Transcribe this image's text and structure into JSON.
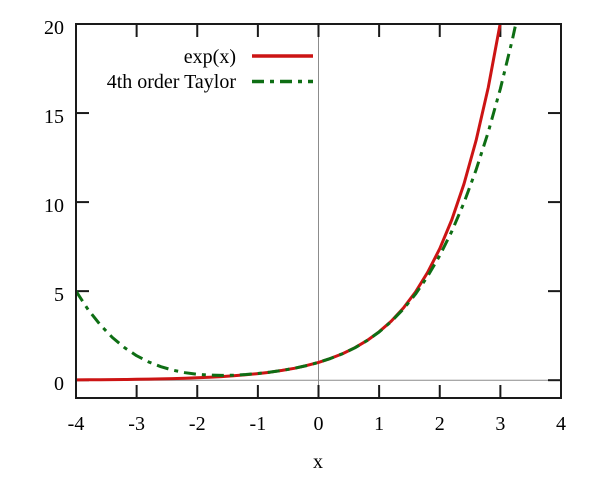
{
  "chart_data": {
    "type": "line",
    "title": "",
    "xlabel": "x",
    "ylabel": "",
    "xlim": [
      -4,
      4
    ],
    "ylim": [
      -1,
      20
    ],
    "xticks": [
      -4,
      -3,
      -2,
      -1,
      0,
      1,
      2,
      3,
      4
    ],
    "yticks": [
      0,
      5,
      10,
      15,
      20
    ],
    "grid": false,
    "zero_axes": true,
    "legend_position": "top-center",
    "axis_color": "#1a1a1a",
    "zero_axis_color": "#8c8c8c",
    "background": "#ffffff",
    "x": [
      -4,
      -3.8,
      -3.6,
      -3.4,
      -3.2,
      -3,
      -2.8,
      -2.6,
      -2.4,
      -2.2,
      -2,
      -1.8,
      -1.6,
      -1.4,
      -1.2,
      -1,
      -0.8,
      -0.6,
      -0.4,
      -0.2,
      0,
      0.2,
      0.4,
      0.6,
      0.8,
      1,
      1.2,
      1.4,
      1.6,
      1.8,
      2,
      2.2,
      2.4,
      2.6,
      2.8,
      3,
      3.2,
      3.4,
      3.6,
      3.8,
      4
    ],
    "series": [
      {
        "name": "exp(x)",
        "color": "#cc1414",
        "line_style": "solid",
        "line_width": 3,
        "y": [
          0.0183,
          0.0224,
          0.0273,
          0.0334,
          0.0408,
          0.0498,
          0.0608,
          0.0743,
          0.0907,
          0.1108,
          0.1353,
          0.1653,
          0.2019,
          0.2466,
          0.3012,
          0.3679,
          0.4493,
          0.5488,
          0.6703,
          0.8187,
          1,
          1.2214,
          1.4918,
          1.8221,
          2.2255,
          2.7183,
          3.3201,
          4.0552,
          4.953,
          6.0496,
          7.3891,
          9.025,
          11.0232,
          13.4637,
          16.4446,
          20.0855,
          24.5325,
          29.9641,
          36.5982,
          44.7012,
          54.5982
        ]
      },
      {
        "name": "4th order Taylor",
        "color": "#0e6e14",
        "line_style": "dash-dot",
        "line_width": 3,
        "y": [
          5,
          3.9627,
          3.1024,
          2.3974,
          1.8277,
          1.375,
          1.0224,
          0.7547,
          0.5584,
          0.4214,
          0.3333,
          0.2854,
          0.2704,
          0.2827,
          0.3184,
          0.375,
          0.4517,
          0.5494,
          0.6704,
          0.8187,
          1,
          1.2214,
          1.4917,
          1.8214,
          2.2224,
          2.7083,
          3.2944,
          3.9974,
          4.8357,
          5.8294,
          7,
          8.3707,
          9.9664,
          11.8134,
          13.9397,
          16.375,
          19.1504,
          22.2987,
          25.8544,
          29.8534,
          34.3333
        ]
      }
    ]
  }
}
